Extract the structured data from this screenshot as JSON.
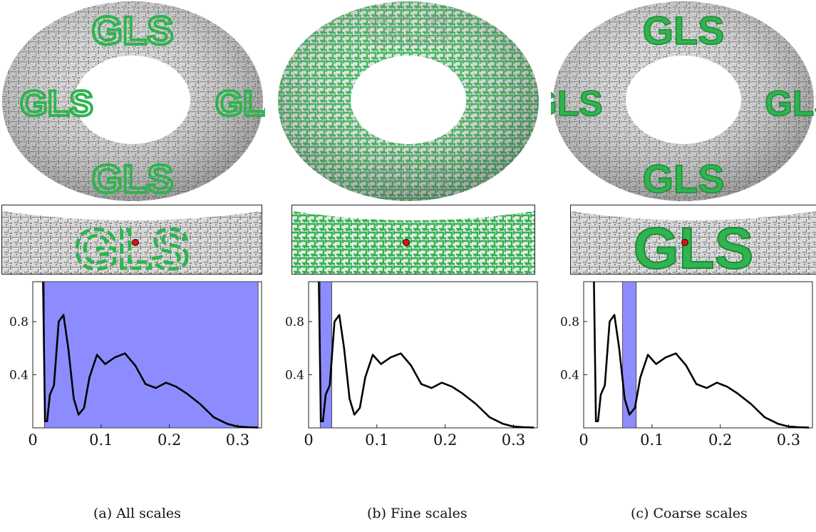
{
  "figure": {
    "panels": [
      {
        "id": "a",
        "caption": "(a) All scales",
        "watermark": "GLS",
        "highlight": "letters"
      },
      {
        "id": "b",
        "caption": "(b) Fine scales",
        "watermark": "GLS",
        "highlight": "all"
      },
      {
        "id": "c",
        "caption": "(c) Coarse scales",
        "watermark": "GLS",
        "highlight": "letters"
      }
    ],
    "colors": {
      "highlight_green": "#2fb44f",
      "band_blue": "#8c8cff",
      "surface_gray": "#cfcfcf",
      "point_red": "#e01010"
    }
  },
  "chart_data": [
    {
      "type": "line",
      "panel": "a",
      "x": [
        0.015,
        0.018,
        0.021,
        0.025,
        0.031,
        0.038,
        0.045,
        0.052,
        0.06,
        0.067,
        0.075,
        0.083,
        0.094,
        0.106,
        0.12,
        0.135,
        0.15,
        0.165,
        0.18,
        0.195,
        0.21,
        0.225,
        0.245,
        0.265,
        0.285,
        0.3,
        0.315,
        0.33
      ],
      "y": [
        1.1,
        0.05,
        0.05,
        0.25,
        0.32,
        0.8,
        0.85,
        0.6,
        0.22,
        0.1,
        0.15,
        0.38,
        0.55,
        0.48,
        0.53,
        0.56,
        0.47,
        0.33,
        0.3,
        0.34,
        0.31,
        0.26,
        0.18,
        0.08,
        0.03,
        0.01,
        0.005,
        0.002
      ],
      "xlim": [
        0,
        0.335
      ],
      "ylim": [
        0,
        1.1
      ],
      "xticks": [
        "0",
        "0.1",
        "0.2",
        "0.3"
      ],
      "xtick_values": [
        0,
        0.1,
        0.2,
        0.3
      ],
      "yticks": [
        "0.4",
        "0.8"
      ],
      "ytick_values": [
        0.4,
        0.8
      ],
      "band": [
        0.017,
        0.33
      ]
    },
    {
      "type": "line",
      "panel": "b",
      "x": [
        0.015,
        0.018,
        0.021,
        0.025,
        0.031,
        0.038,
        0.045,
        0.052,
        0.06,
        0.067,
        0.075,
        0.083,
        0.094,
        0.106,
        0.12,
        0.135,
        0.15,
        0.165,
        0.18,
        0.195,
        0.21,
        0.225,
        0.245,
        0.265,
        0.285,
        0.3,
        0.315,
        0.33
      ],
      "y": [
        1.1,
        0.05,
        0.05,
        0.25,
        0.32,
        0.8,
        0.85,
        0.6,
        0.22,
        0.1,
        0.15,
        0.38,
        0.55,
        0.48,
        0.53,
        0.56,
        0.47,
        0.33,
        0.3,
        0.34,
        0.31,
        0.26,
        0.18,
        0.08,
        0.03,
        0.01,
        0.005,
        0.002
      ],
      "xlim": [
        0,
        0.335
      ],
      "ylim": [
        0,
        1.1
      ],
      "xticks": [
        "0",
        "0.1",
        "0.2",
        "0.3"
      ],
      "xtick_values": [
        0,
        0.1,
        0.2,
        0.3
      ],
      "yticks": [
        "0.4",
        "0.8"
      ],
      "ytick_values": [
        0.4,
        0.8
      ],
      "band": [
        0.017,
        0.034
      ]
    },
    {
      "type": "line",
      "panel": "c",
      "x": [
        0.015,
        0.018,
        0.021,
        0.025,
        0.031,
        0.038,
        0.045,
        0.052,
        0.06,
        0.067,
        0.075,
        0.083,
        0.094,
        0.106,
        0.12,
        0.135,
        0.15,
        0.165,
        0.18,
        0.195,
        0.21,
        0.225,
        0.245,
        0.265,
        0.285,
        0.3,
        0.315,
        0.33
      ],
      "y": [
        1.1,
        0.05,
        0.05,
        0.25,
        0.32,
        0.8,
        0.85,
        0.6,
        0.22,
        0.1,
        0.15,
        0.38,
        0.55,
        0.48,
        0.53,
        0.56,
        0.47,
        0.33,
        0.3,
        0.34,
        0.31,
        0.26,
        0.18,
        0.08,
        0.03,
        0.01,
        0.005,
        0.002
      ],
      "xlim": [
        0,
        0.335
      ],
      "ylim": [
        0,
        1.1
      ],
      "xticks": [
        "0",
        "0.1",
        "0.2",
        "0.3"
      ],
      "xtick_values": [
        0,
        0.1,
        0.2,
        0.3
      ],
      "yticks": [
        "0.4",
        "0.8"
      ],
      "ytick_values": [
        0.4,
        0.8
      ],
      "band": [
        0.057,
        0.077
      ]
    }
  ]
}
